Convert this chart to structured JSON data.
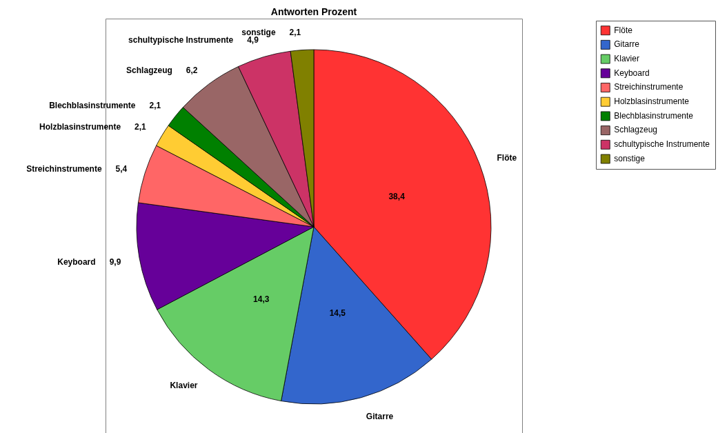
{
  "chart_data": {
    "type": "pie",
    "title": "Antworten Prozent",
    "categories": [
      "Flöte",
      "Gitarre",
      "Klavier",
      "Keyboard",
      "Streichinstrumente",
      "Holzblasinstrumente",
      "Blechblasinstrumente",
      "Schlagzeug",
      "schultypische Instrumente",
      "sonstige"
    ],
    "values": [
      38.4,
      14.5,
      14.3,
      9.9,
      5.4,
      2.1,
      2.1,
      6.2,
      4.9,
      2.1
    ],
    "colors": [
      "#ff3333",
      "#3366cc",
      "#66cc66",
      "#660099",
      "#ff6666",
      "#ffcc33",
      "#008000",
      "#996666",
      "#cc3366",
      "#808000"
    ],
    "value_labels": [
      "38,4",
      "14,5",
      "14,3",
      "9,9",
      "5,4",
      "2,1",
      "2,1",
      "6,2",
      "4,9",
      "2,1"
    ],
    "legend": "top right"
  }
}
